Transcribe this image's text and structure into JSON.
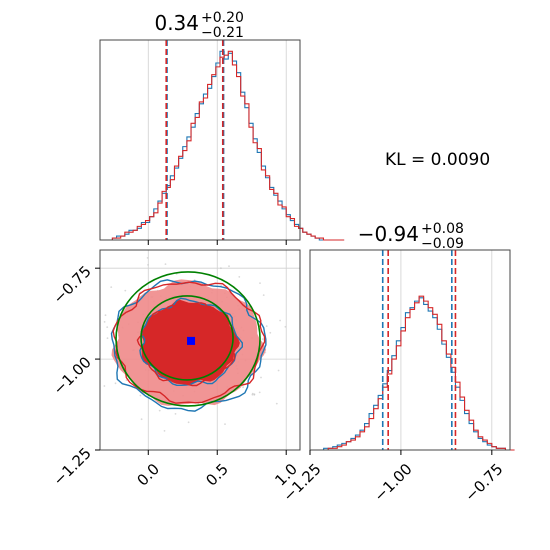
{
  "chart_data": [
    {
      "type": "histogram",
      "panel": "top-left",
      "title_value": "0.34",
      "title_upper": "+0.20",
      "title_lower": "−0.21",
      "xlim": [
        -0.35,
        1.1
      ],
      "quantiles": [
        0.13,
        0.34,
        0.54
      ],
      "grid": true,
      "series": [
        {
          "color": "#1f77b4",
          "edges_start": -0.35,
          "bin_width": 0.03,
          "counts": [
            0,
            0,
            0,
            1,
            2,
            2,
            3,
            5,
            5,
            6,
            9,
            9,
            12,
            16,
            20,
            24,
            28,
            33,
            37,
            42,
            48,
            53,
            58,
            65,
            70,
            75,
            78,
            84,
            91,
            97,
            93,
            96,
            92,
            86,
            76,
            68,
            60,
            52,
            45,
            38,
            32,
            27,
            23,
            20,
            16,
            13,
            10,
            8,
            6,
            4,
            3,
            2,
            1,
            0,
            0,
            0,
            0,
            0,
            0
          ]
        },
        {
          "color": "#d62728",
          "edges_start": -0.35,
          "bin_width": 0.03,
          "counts": [
            0,
            0,
            0,
            1,
            1,
            2,
            4,
            4,
            5,
            7,
            8,
            10,
            12,
            14,
            19,
            25,
            27,
            31,
            38,
            43,
            46,
            51,
            60,
            63,
            71,
            73,
            80,
            85,
            89,
            94,
            95,
            97,
            90,
            84,
            74,
            70,
            58,
            50,
            47,
            36,
            33,
            26,
            24,
            18,
            17,
            12,
            11,
            7,
            6,
            4,
            3,
            2,
            1,
            1,
            0,
            0,
            0,
            0,
            0
          ]
        }
      ]
    },
    {
      "type": "contour",
      "panel": "bottom-left",
      "xlim": [
        -0.35,
        1.1
      ],
      "ylim": [
        -1.25,
        -0.7
      ],
      "xticks": [
        "0.0",
        "0.5",
        "1.0"
      ],
      "yticks": [
        "−0.75",
        "−1.00",
        "−1.25"
      ],
      "xtick_values": [
        0.0,
        0.5,
        1.0
      ],
      "ytick_values": [
        -0.75,
        -1.0,
        -1.25
      ],
      "marker": {
        "x": 0.31,
        "y": -0.95,
        "color": "#0000ff"
      },
      "grid": true,
      "colors": {
        "fill_inner": "#d62728",
        "fill_outer": "#f08a8a",
        "contour_blue": "#1f77b4",
        "contour_red": "#d62728",
        "contour_green": "#008000",
        "scatter": "#c0c0c0"
      }
    },
    {
      "type": "histogram",
      "panel": "bottom-right",
      "title_value": "−0.94",
      "title_upper": "+0.08",
      "title_lower": "−0.09",
      "xlim": [
        -1.25,
        -0.7
      ],
      "xticks": [
        "−1.25",
        "−1.00",
        "−0.75"
      ],
      "xtick_values": [
        -1.25,
        -1.0,
        -0.75
      ],
      "quantiles_blue": [
        -1.05,
        -0.86
      ],
      "quantiles_red": [
        -1.035,
        -0.85
      ],
      "grid": true,
      "series": [
        {
          "color": "#1f77b4",
          "edges_start": -1.25,
          "bin_width": 0.0125,
          "counts": [
            0,
            0,
            0,
            1,
            1,
            2,
            3,
            4,
            5,
            7,
            9,
            12,
            16,
            22,
            27,
            33,
            40,
            48,
            57,
            66,
            74,
            83,
            86,
            90,
            92,
            88,
            84,
            80,
            73,
            64,
            56,
            47,
            38,
            30,
            22,
            16,
            11,
            7,
            5,
            3,
            2,
            1,
            1,
            0,
            0
          ]
        },
        {
          "color": "#d62728",
          "edges_start": -1.25,
          "bin_width": 0.0125,
          "counts": [
            0,
            0,
            0,
            0,
            1,
            1,
            2,
            3,
            5,
            6,
            8,
            11,
            14,
            19,
            25,
            31,
            38,
            46,
            55,
            63,
            72,
            80,
            85,
            89,
            93,
            90,
            86,
            82,
            76,
            66,
            58,
            50,
            41,
            32,
            24,
            18,
            12,
            8,
            6,
            4,
            2,
            1,
            1,
            0,
            0
          ]
        }
      ]
    }
  ],
  "annotation": "KL = 0.0090"
}
